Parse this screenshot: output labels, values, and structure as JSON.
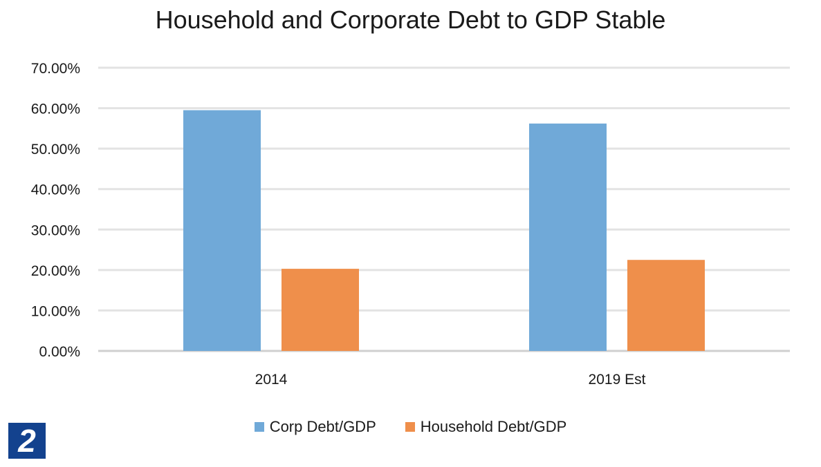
{
  "chart_data": {
    "type": "bar",
    "title": "Household and Corporate Debt to GDP Stable",
    "categories": [
      "2014",
      "2019 Est"
    ],
    "series": [
      {
        "name": "Corp Debt/GDP",
        "values": [
          59.5,
          56.2
        ],
        "color": "#70a9d8"
      },
      {
        "name": "Household Debt/GDP",
        "values": [
          20.3,
          22.5
        ],
        "color": "#ef8f4b"
      }
    ],
    "ylim": [
      0,
      70
    ],
    "yticks": [
      0,
      10,
      20,
      30,
      40,
      50,
      60,
      70
    ],
    "ytick_labels": [
      "0.00%",
      "10.00%",
      "20.00%",
      "30.00%",
      "40.00%",
      "50.00%",
      "60.00%",
      "70.00%"
    ],
    "grid": true,
    "legend_position": "bottom",
    "xlabel": "",
    "ylabel": ""
  },
  "badge": {
    "text": "2",
    "color": "#13428e"
  }
}
